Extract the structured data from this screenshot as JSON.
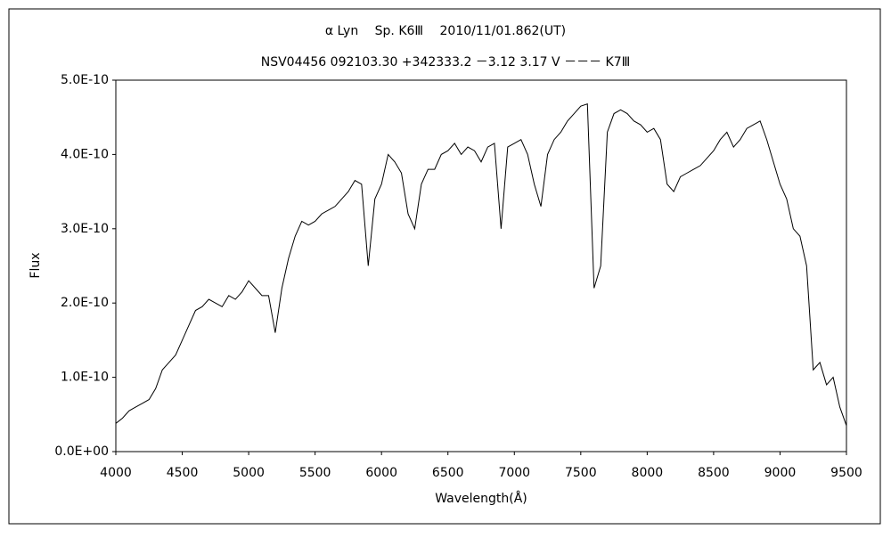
{
  "chart_data": {
    "type": "line",
    "title": "α Lyn　 Sp. K6Ⅲ　 2010/11/01.862(UT)",
    "subtitle": "NSV04456 092103.30 +342333.2 －3.12 3.17 V －－－ K7Ⅲ",
    "x_label": "Wavelength(Å)",
    "y_label": "Flux",
    "color": "#000000",
    "grid": false,
    "xlim": [
      4000,
      9500
    ],
    "xticks": [
      4000,
      4500,
      5000,
      5500,
      6000,
      6500,
      7000,
      7500,
      8000,
      8500,
      9000,
      9500
    ],
    "ylim": [
      0,
      5e-10
    ],
    "yticks": [
      {
        "value": 0,
        "label": "0.0E+00"
      },
      {
        "value": 1e-10,
        "label": "1.0E-10"
      },
      {
        "value": 2e-10,
        "label": "2.0E-10"
      },
      {
        "value": 3e-10,
        "label": "3.0E-10"
      },
      {
        "value": 4e-10,
        "label": "4.0E-10"
      },
      {
        "value": 5e-10,
        "label": "5.0E-10"
      }
    ],
    "x": [
      4000,
      4050,
      4100,
      4150,
      4200,
      4250,
      4300,
      4350,
      4400,
      4450,
      4500,
      4550,
      4600,
      4650,
      4700,
      4750,
      4800,
      4850,
      4900,
      4950,
      5000,
      5050,
      5100,
      5150,
      5200,
      5250,
      5300,
      5350,
      5400,
      5450,
      5500,
      5550,
      5600,
      5650,
      5700,
      5750,
      5800,
      5850,
      5900,
      5950,
      6000,
      6050,
      6100,
      6150,
      6200,
      6250,
      6300,
      6350,
      6400,
      6450,
      6500,
      6550,
      6600,
      6650,
      6700,
      6750,
      6800,
      6850,
      6900,
      6950,
      7000,
      7050,
      7100,
      7150,
      7200,
      7250,
      7300,
      7350,
      7400,
      7450,
      7500,
      7550,
      7600,
      7650,
      7700,
      7750,
      7800,
      7850,
      7900,
      7950,
      8000,
      8050,
      8100,
      8150,
      8200,
      8250,
      8300,
      8350,
      8400,
      8450,
      8500,
      8550,
      8600,
      8650,
      8700,
      8750,
      8800,
      8850,
      8900,
      8950,
      9000,
      9050,
      9100,
      9150,
      9200,
      9250,
      9300,
      9350,
      9400,
      9450,
      9500
    ],
    "values": [
      3.8e-11,
      4.5e-11,
      5.5e-11,
      6e-11,
      6.5e-11,
      7e-11,
      8.5e-11,
      1.1e-10,
      1.2e-10,
      1.3e-10,
      1.5e-10,
      1.7e-10,
      1.9e-10,
      1.95e-10,
      2.05e-10,
      2e-10,
      1.95e-10,
      2.1e-10,
      2.05e-10,
      2.15e-10,
      2.3e-10,
      2.2e-10,
      2.1e-10,
      2.1e-10,
      1.6e-10,
      2.2e-10,
      2.6e-10,
      2.9e-10,
      3.1e-10,
      3.05e-10,
      3.1e-10,
      3.2e-10,
      3.25e-10,
      3.3e-10,
      3.4e-10,
      3.5e-10,
      3.65e-10,
      3.6e-10,
      2.5e-10,
      3.4e-10,
      3.6e-10,
      4e-10,
      3.9e-10,
      3.75e-10,
      3.2e-10,
      3e-10,
      3.6e-10,
      3.8e-10,
      3.8e-10,
      4e-10,
      4.05e-10,
      4.15e-10,
      4e-10,
      4.1e-10,
      4.05e-10,
      3.9e-10,
      4.1e-10,
      4.15e-10,
      3e-10,
      4.1e-10,
      4.15e-10,
      4.2e-10,
      4e-10,
      3.6e-10,
      3.3e-10,
      4e-10,
      4.2e-10,
      4.3e-10,
      4.45e-10,
      4.55e-10,
      4.65e-10,
      4.68e-10,
      2.2e-10,
      2.5e-10,
      4.3e-10,
      4.55e-10,
      4.6e-10,
      4.55e-10,
      4.45e-10,
      4.4e-10,
      4.3e-10,
      4.35e-10,
      4.2e-10,
      3.6e-10,
      3.5e-10,
      3.7e-10,
      3.75e-10,
      3.8e-10,
      3.85e-10,
      3.95e-10,
      4.05e-10,
      4.2e-10,
      4.3e-10,
      4.1e-10,
      4.2e-10,
      4.35e-10,
      4.4e-10,
      4.45e-10,
      4.2e-10,
      3.9e-10,
      3.6e-10,
      3.4e-10,
      3e-10,
      2.9e-10,
      2.5e-10,
      1.1e-10,
      1.2e-10,
      9e-11,
      1e-10,
      6e-11,
      3.5e-11
    ]
  }
}
